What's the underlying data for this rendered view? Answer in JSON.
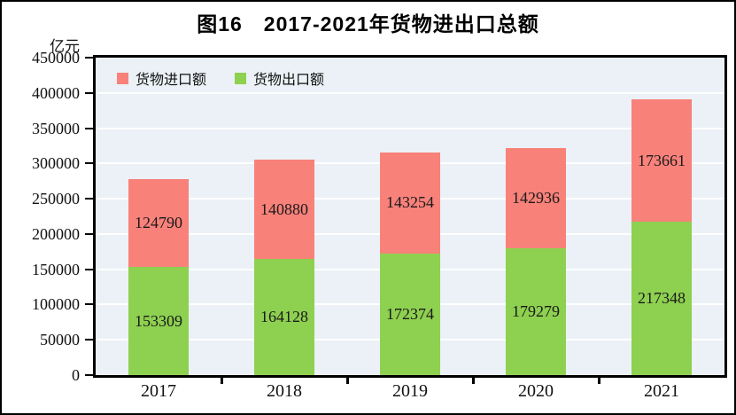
{
  "figure": {
    "title": "图16　2017-2021年货物进出口总额",
    "unit": "亿元"
  },
  "legend": [
    {
      "label": "货物进口额",
      "color": "#F8817A"
    },
    {
      "label": "货物出口额",
      "color": "#8ED050"
    }
  ],
  "chart_data": {
    "type": "bar",
    "stacked": true,
    "title": "图16　2017-2021年货物进出口总额",
    "xlabel": "",
    "ylabel": "亿元",
    "categories": [
      "2017",
      "2018",
      "2019",
      "2020",
      "2021"
    ],
    "series": [
      {
        "name": "货物出口额",
        "color": "#8ED050",
        "values": [
          153309,
          164128,
          172374,
          179279,
          217348
        ]
      },
      {
        "name": "货物进口额",
        "color": "#F8817A",
        "values": [
          124790,
          140880,
          143254,
          142936,
          173661
        ]
      }
    ],
    "ylim": [
      0,
      450000
    ],
    "ytick_step": 50000,
    "yticks": [
      0,
      50000,
      100000,
      150000,
      200000,
      250000,
      300000,
      350000,
      400000,
      450000
    ],
    "grid": true,
    "legend_position": "top-left-inside"
  },
  "colors": {
    "plot_background": "#EBF1F6",
    "gridline": "#FFFFFF",
    "axis": "#000000",
    "import_red": "#F8817A",
    "export_green": "#8ED050",
    "text": "#111111"
  }
}
